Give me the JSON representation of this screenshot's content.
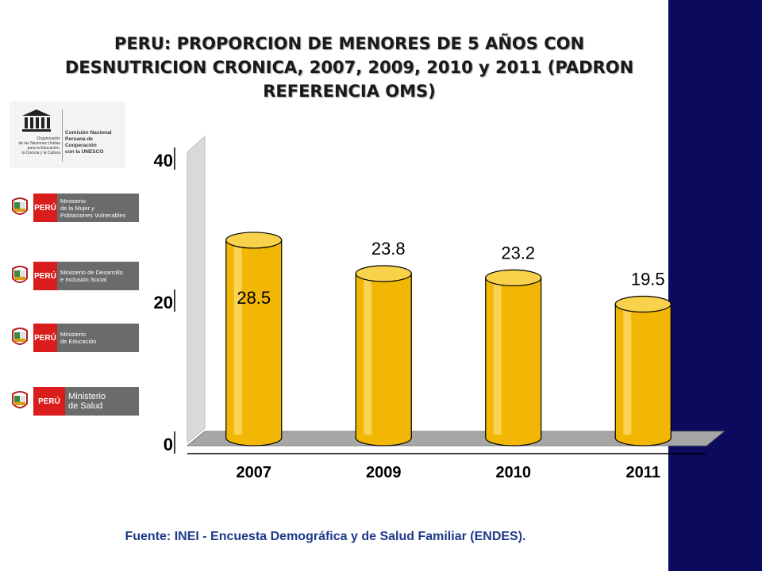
{
  "title": "PERU: PROPORCION DE MENORES DE 5 AÑOS CON\nDESNUTRICION CRONICA, 2007, 2009, 2010 y 2011 (PADRON\nREFERENCIA OMS)",
  "source": "Fuente: INEI - Encuesta Demográfica y de Salud Familiar (ENDES).",
  "logos": {
    "unesco": {
      "org_text": "Organización\nde las Naciones Unidas\npara la Educación,\nla Ciencia y la Cultura",
      "commission_text": "Comisión Nacional\nPeruana de Cooperación\ncon la UNESCO"
    },
    "ministries": [
      {
        "peru": "PERÚ",
        "name": "Ministerio\nde la Mujer y\nPoblaciones Vulnerables"
      },
      {
        "peru": "PERÚ",
        "name": "Ministerio de Desarrollo\ne Inclusión Social"
      },
      {
        "peru": "PERÚ",
        "name": "Ministerio\nde Educación"
      },
      {
        "peru": "PERÚ",
        "name": "Ministerio\nde Salud"
      }
    ]
  },
  "colors": {
    "bar": "#f2b705",
    "bar_top": "#f8d24a",
    "side_band": "#0b0a5c",
    "floor": "#a6a6a6",
    "wall": "#d9d9d9"
  },
  "chart_data": {
    "type": "bar",
    "categories": [
      "2007",
      "2009",
      "2010",
      "2011"
    ],
    "values": [
      28.5,
      23.8,
      23.2,
      19.5
    ],
    "data_labels": [
      "28.5",
      "23.8",
      "23.2",
      "19.5"
    ],
    "yticks": [
      "0",
      "20",
      "40"
    ],
    "ylim": [
      0,
      40
    ],
    "grid": false
  }
}
